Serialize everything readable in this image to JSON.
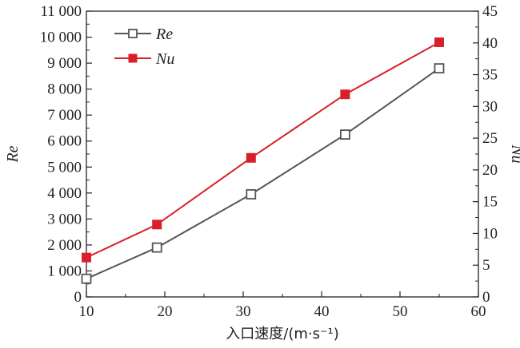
{
  "chart_data": {
    "type": "line",
    "x": [
      10,
      19,
      31,
      43,
      55
    ],
    "xlim": [
      10,
      60
    ],
    "xticks": [
      10,
      20,
      30,
      40,
      50,
      60
    ],
    "xlabel": "入口速度/(m·s⁻¹)",
    "left_axis": {
      "label": "Re",
      "ylim": [
        0,
        11000
      ],
      "ticks": [
        0,
        1000,
        2000,
        3000,
        4000,
        5000,
        6000,
        7000,
        8000,
        9000,
        10000,
        11000
      ],
      "tick_labels": [
        "0",
        "1 000",
        "2 000",
        "3 000",
        "4 000",
        "5 000",
        "6 000",
        "7 000",
        "8 000",
        "9 000",
        "10 000",
        "11 000"
      ]
    },
    "right_axis": {
      "label": "Nu",
      "ylim": [
        0,
        45
      ],
      "ticks": [
        0,
        5,
        10,
        15,
        20,
        25,
        30,
        35,
        40,
        45
      ],
      "tick_labels": [
        "0",
        "5",
        "10",
        "15",
        "20",
        "25",
        "30",
        "35",
        "40",
        "45"
      ]
    },
    "series": [
      {
        "name": "Re",
        "axis": "left",
        "values": [
          700,
          1900,
          3950,
          6250,
          8800
        ],
        "color": "#555555",
        "marker": "open-square"
      },
      {
        "name": "Nu",
        "axis": "right",
        "values": [
          6.2,
          11.4,
          21.9,
          31.9,
          40.1
        ],
        "color": "#d9202a",
        "marker": "filled-square"
      }
    ],
    "legend": {
      "placement": "top-left",
      "entries": [
        "Re",
        "Nu"
      ]
    },
    "grid": false
  }
}
